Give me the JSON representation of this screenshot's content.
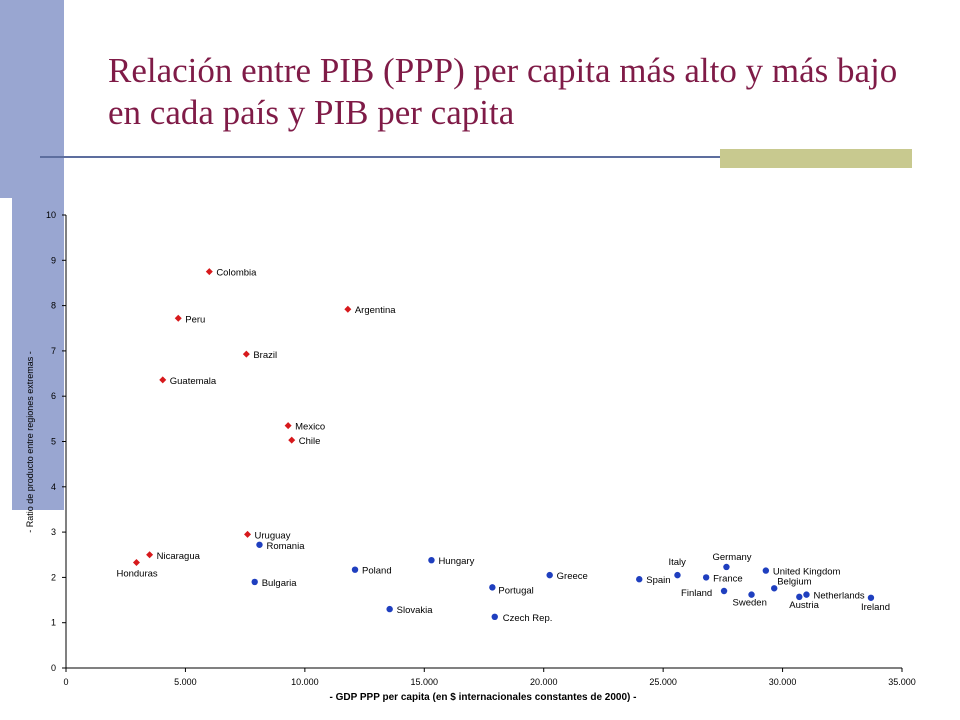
{
  "slide": {
    "title": "Relación entre PIB (PPP) per capita más alto y más bajo en cada país y PIB per capita"
  },
  "chart_data": {
    "type": "scatter",
    "xlabel": "- GDP PPP per capita (en $ internacionales constantes de 2000) -",
    "ylabel": "- Ratio de producto entre regiones extremas -",
    "xlim": [
      0,
      35000
    ],
    "ylim": [
      0,
      10
    ],
    "x_ticks": [
      0,
      5000,
      10000,
      15000,
      20000,
      25000,
      30000,
      35000
    ],
    "x_tick_labels": [
      "0",
      "5.000",
      "10.000",
      "15.000",
      "20.000",
      "25.000",
      "30.000",
      "35.000"
    ],
    "y_ticks": [
      0,
      1,
      2,
      3,
      4,
      5,
      6,
      7,
      8,
      9,
      10
    ],
    "y_tick_labels": [
      "0",
      "1",
      "2",
      "3",
      "4",
      "5",
      "6",
      "7",
      "8",
      "9",
      "10"
    ],
    "grid": false,
    "series": [
      {
        "color": "#d7191c",
        "marker": "diamond",
        "points": [
          {
            "label": "Colombia",
            "x": 6000,
            "y": 8.75
          },
          {
            "label": "Argentina",
            "x": 11800,
            "y": 7.92
          },
          {
            "label": "Peru",
            "x": 4700,
            "y": 7.72
          },
          {
            "label": "Brazil",
            "x": 7550,
            "y": 6.93
          },
          {
            "label": "Guatemala",
            "x": 4050,
            "y": 6.36
          },
          {
            "label": "Mexico",
            "x": 9300,
            "y": 5.35
          },
          {
            "label": "Chile",
            "x": 9450,
            "y": 5.03
          },
          {
            "label": "Uruguay",
            "x": 7600,
            "y": 2.95
          },
          {
            "label": "Nicaragua",
            "x": 3500,
            "y": 2.5
          },
          {
            "label": "Honduras",
            "x": 2950,
            "y": 2.33
          }
        ]
      },
      {
        "color": "#1f3fbf",
        "marker": "circle",
        "points": [
          {
            "label": "Romania",
            "x": 8100,
            "y": 2.72
          },
          {
            "label": "Bulgaria",
            "x": 7900,
            "y": 1.9
          },
          {
            "label": "Poland",
            "x": 12100,
            "y": 2.17
          },
          {
            "label": "Hungary",
            "x": 15300,
            "y": 2.38
          },
          {
            "label": "Slovakia",
            "x": 13550,
            "y": 1.3
          },
          {
            "label": "Portugal",
            "x": 17850,
            "y": 1.78
          },
          {
            "label": "Czech Rep.",
            "x": 17950,
            "y": 1.13
          },
          {
            "label": "Greece",
            "x": 20250,
            "y": 2.05
          },
          {
            "label": "Spain",
            "x": 24000,
            "y": 1.96
          },
          {
            "label": "Italy",
            "x": 25600,
            "y": 2.05
          },
          {
            "label": "France",
            "x": 26800,
            "y": 2.0
          },
          {
            "label": "Germany",
            "x": 27650,
            "y": 2.23
          },
          {
            "label": "Finland",
            "x": 27550,
            "y": 1.7
          },
          {
            "label": "Sweden",
            "x": 28700,
            "y": 1.62
          },
          {
            "label": "United Kingdom",
            "x": 29300,
            "y": 2.15
          },
          {
            "label": "Belgium",
            "x": 29650,
            "y": 1.76
          },
          {
            "label": "Austria",
            "x": 30700,
            "y": 1.57
          },
          {
            "label": "Netherlands",
            "x": 31000,
            "y": 1.62
          },
          {
            "label": "Ireland",
            "x": 33700,
            "y": 1.55
          }
        ]
      }
    ]
  }
}
